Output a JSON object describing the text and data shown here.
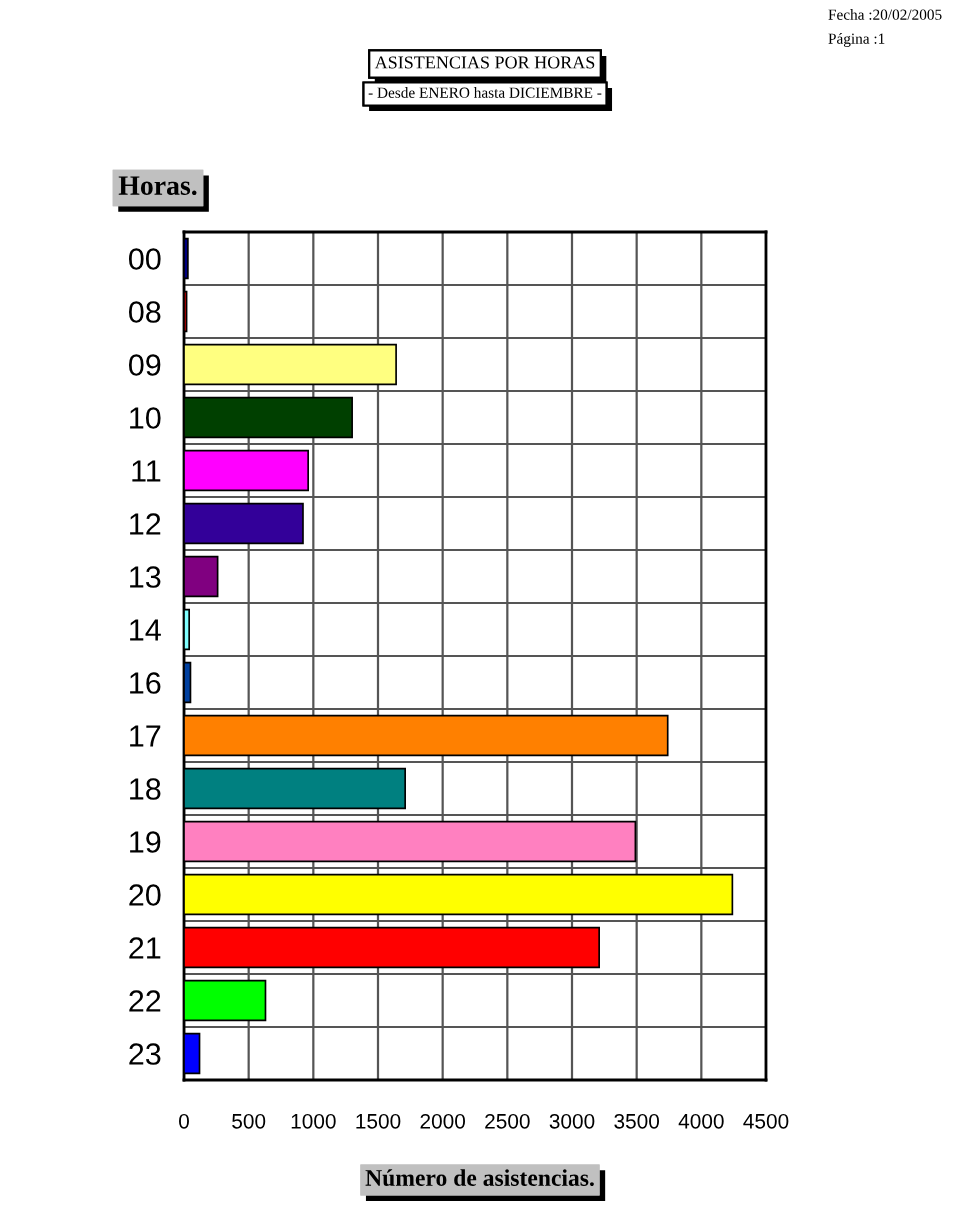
{
  "chart_data": {
    "type": "bar",
    "orientation": "horizontal",
    "title": "ASISTENCIAS POR HORAS",
    "subtitle": "- Desde ENERO hasta DICIEMBRE -",
    "xlabel": "Número de asistencias.",
    "ylabel": "Horas.",
    "categories": [
      "00",
      "08",
      "09",
      "10",
      "11",
      "12",
      "13",
      "14",
      "16",
      "17",
      "18",
      "19",
      "20",
      "21",
      "22",
      "23"
    ],
    "values": [
      30,
      20,
      1640,
      1300,
      960,
      920,
      260,
      40,
      50,
      3740,
      1710,
      3490,
      4240,
      3210,
      630,
      120
    ],
    "colors": [
      "#000080",
      "#cc0000",
      "#ffff80",
      "#004000",
      "#ff00ff",
      "#330099",
      "#800080",
      "#80ffff",
      "#0040a0",
      "#ff8000",
      "#008080",
      "#ff80c0",
      "#ffff00",
      "#ff0000",
      "#00ff00",
      "#0000ff"
    ],
    "xlim": [
      0,
      4500
    ],
    "xticks": [
      0,
      500,
      1000,
      1500,
      2000,
      2500,
      3000,
      3500,
      4000,
      4500
    ],
    "grid": true,
    "annotations": [
      "Fecha :20/02/2005",
      "Página :1"
    ]
  }
}
